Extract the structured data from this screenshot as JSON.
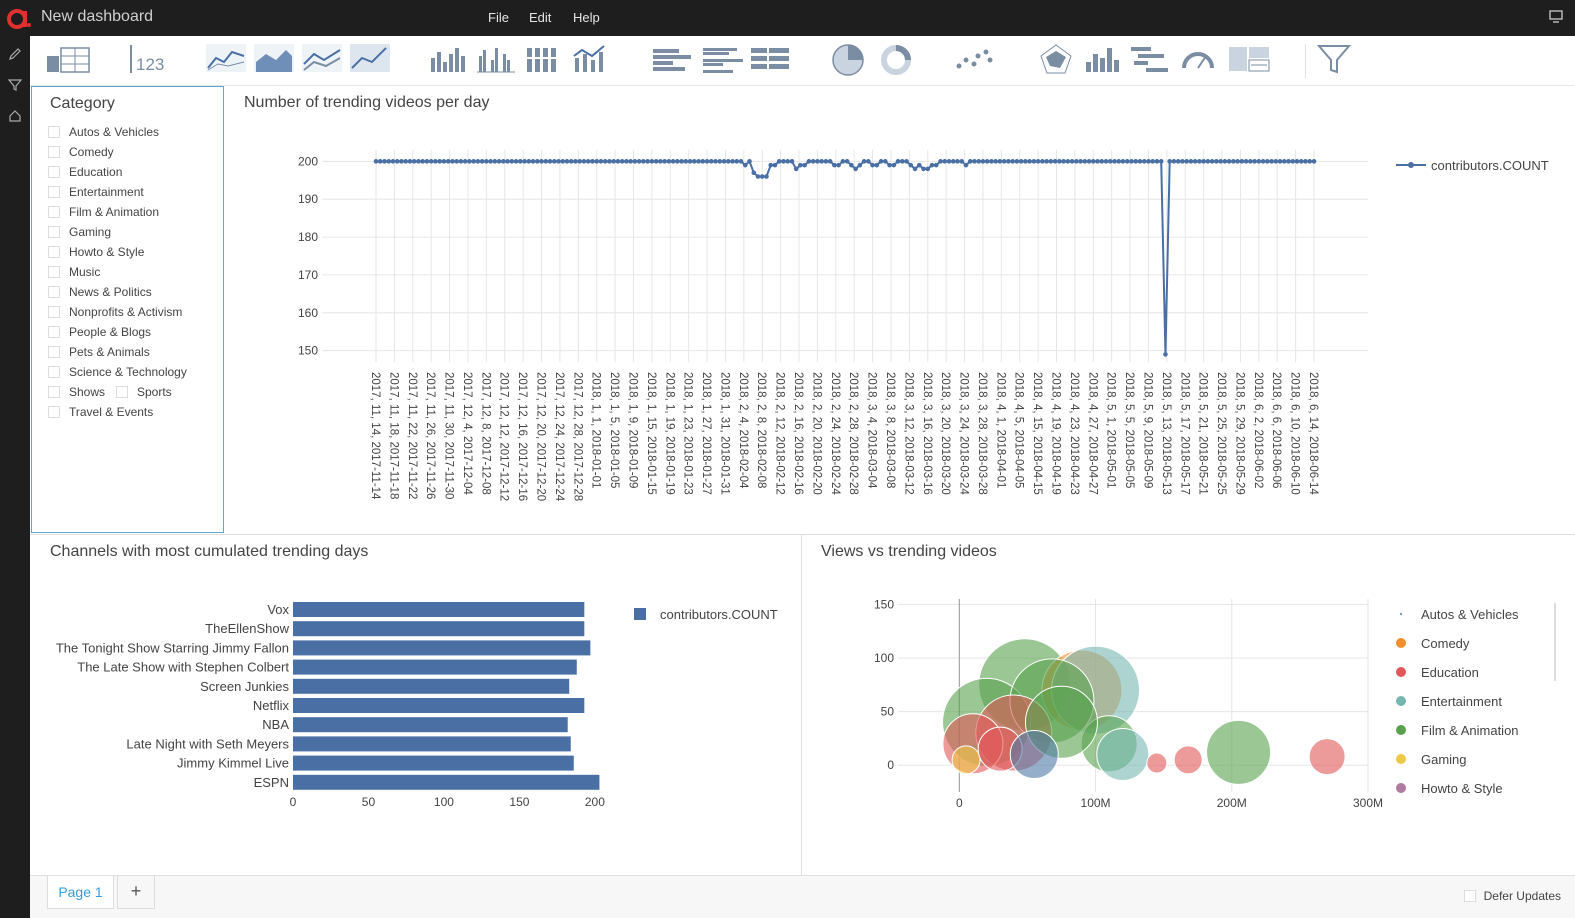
{
  "app": {
    "title": "New dashboard"
  },
  "menu": {
    "file": "File",
    "edit": "Edit",
    "help": "Help"
  },
  "toolbar": {
    "table_number": "123"
  },
  "filter": {
    "title": "Category",
    "items": [
      "Autos & Vehicles",
      "Comedy",
      "Education",
      "Entertainment",
      "Film & Animation",
      "Gaming",
      "Howto & Style",
      "Music",
      "News & Politics",
      "Nonprofits & Activism",
      "People & Blogs",
      "Pets & Animals",
      "Science & Technology",
      "Shows",
      "Sports",
      "Travel & Events"
    ]
  },
  "line_panel": {
    "title": "Number of trending videos per day"
  },
  "bar_panel": {
    "title": "Channels with most cumulated trending days"
  },
  "bubble_panel": {
    "title": "Views vs trending videos"
  },
  "footer": {
    "page_tab": "Page 1",
    "add_tab": "+",
    "defer": "Defer Updates"
  },
  "colors": {
    "accent": "#3a9ad9",
    "series": "#4a6fa5",
    "topbar": "#1e1e1e",
    "brand": "#e03030"
  },
  "chart_data": [
    {
      "type": "line",
      "legend": [
        "contributors.COUNT"
      ],
      "legend_position": "right",
      "ylim": [
        147,
        203
      ],
      "yticks": [
        150,
        160,
        170,
        180,
        190,
        200
      ],
      "xticks": [
        "2017, 11, 14, 2017-11-14",
        "2017, 11, 18, 2017-11-18",
        "2017, 11, 22, 2017-11-22",
        "2017, 11, 26, 2017-11-26",
        "2017, 11, 30, 2017-11-30",
        "2017, 12, 4, 2017-12-04",
        "2017, 12, 8, 2017-12-08",
        "2017, 12, 12, 2017-12-12",
        "2017, 12, 16, 2017-12-16",
        "2017, 12, 20, 2017-12-20",
        "2017, 12, 24, 2017-12-24",
        "2017, 12, 28, 2017-12-28",
        "2018, 1, 1, 2018-01-01",
        "2018, 1, 5, 2018-01-05",
        "2018, 1, 9, 2018-01-09",
        "2018, 1, 15, 2018-01-15",
        "2018, 1, 19, 2018-01-19",
        "2018, 1, 23, 2018-01-23",
        "2018, 1, 27, 2018-01-27",
        "2018, 1, 31, 2018-01-31",
        "2018, 2, 4, 2018-02-04",
        "2018, 2, 8, 2018-02-08",
        "2018, 2, 12, 2018-02-12",
        "2018, 2, 16, 2018-02-16",
        "2018, 2, 20, 2018-02-20",
        "2018, 2, 24, 2018-02-24",
        "2018, 2, 28, 2018-02-28",
        "2018, 3, 4, 2018-03-04",
        "2018, 3, 8, 2018-03-08",
        "2018, 3, 12, 2018-03-12",
        "2018, 3, 16, 2018-03-16",
        "2018, 3, 20, 2018-03-20",
        "2018, 3, 24, 2018-03-24",
        "2018, 3, 28, 2018-03-28",
        "2018, 4, 1, 2018-04-01",
        "2018, 4, 5, 2018-04-05",
        "2018, 4, 15, 2018-04-15",
        "2018, 4, 19, 2018-04-19",
        "2018, 4, 23, 2018-04-23",
        "2018, 4, 27, 2018-04-27",
        "2018, 5, 1, 2018-05-01",
        "2018, 5, 5, 2018-05-05",
        "2018, 5, 9, 2018-05-09",
        "2018, 5, 13, 2018-05-13",
        "2018, 5, 17, 2018-05-17",
        "2018, 5, 21, 2018-05-21",
        "2018, 5, 25, 2018-05-25",
        "2018, 5, 29, 2018-05-29",
        "2018, 6, 2, 2018-06-02",
        "2018, 6, 6, 2018-06-06",
        "2018, 6, 10, 2018-06-10",
        "2018, 6, 14, 2018-06-14"
      ],
      "series": [
        {
          "name": "contributors.COUNT",
          "values": [
            200,
            200,
            200,
            200,
            200,
            200,
            200,
            200,
            200,
            200,
            200,
            200,
            200,
            200,
            200,
            200,
            200,
            200,
            200,
            200,
            200,
            200,
            200,
            200,
            200,
            200,
            200,
            200,
            200,
            200,
            200,
            200,
            200,
            200,
            200,
            200,
            200,
            200,
            200,
            200,
            200,
            200,
            200,
            200,
            200,
            200,
            200,
            200,
            200,
            200,
            200,
            200,
            200,
            200,
            200,
            200,
            200,
            200,
            200,
            200,
            200,
            200,
            200,
            200,
            200,
            200,
            200,
            200,
            200,
            200,
            200,
            200,
            200,
            200,
            200,
            200,
            200,
            200,
            200,
            200,
            200,
            200,
            200,
            200,
            200,
            200,
            200,
            199,
            200,
            197,
            196,
            196,
            196,
            199,
            199,
            200,
            200,
            200,
            200,
            198,
            199,
            199,
            200,
            200,
            200,
            200,
            200,
            200,
            199,
            199,
            200,
            200,
            199,
            198,
            199,
            200,
            200,
            199,
            199,
            200,
            200,
            199,
            199,
            200,
            200,
            200,
            199,
            198,
            199,
            198,
            198,
            199,
            199,
            200,
            200,
            200,
            200,
            200,
            200,
            199,
            200,
            200,
            200,
            200,
            200,
            200,
            200,
            200,
            200,
            200,
            200,
            200,
            200,
            200,
            200,
            200,
            200,
            200,
            200,
            200,
            200,
            200,
            200,
            200,
            200,
            200,
            200,
            200,
            200,
            200,
            200,
            200,
            200,
            200,
            200,
            200,
            200,
            200,
            200,
            200,
            200,
            200,
            200,
            200,
            200,
            200,
            149,
            200,
            200,
            200,
            200,
            200,
            200,
            200,
            200,
            200,
            200,
            200,
            200,
            200,
            200,
            200,
            200,
            200,
            200,
            200,
            200,
            200,
            200,
            200,
            200,
            200,
            200,
            200,
            200,
            200,
            200,
            200,
            200,
            200,
            200,
            200
          ]
        }
      ]
    },
    {
      "type": "bar",
      "orientation": "horizontal",
      "categories": [
        "Vox",
        "TheEllenShow",
        "The Tonight Show Starring Jimmy Fallon",
        "The Late Show with Stephen Colbert",
        "Screen Junkies",
        "Netflix",
        "NBA",
        "Late Night with Seth Meyers",
        "Jimmy Kimmel Live",
        "ESPN"
      ],
      "series": [
        {
          "name": "contributors.COUNT",
          "values": [
            193,
            193,
            197,
            188,
            183,
            193,
            182,
            184,
            186,
            203
          ]
        }
      ],
      "xticks": [
        0,
        50,
        100,
        150,
        200
      ],
      "xlim": [
        0,
        212
      ],
      "legend_position": "right"
    },
    {
      "type": "scatter",
      "subtype": "bubble",
      "xticks": [
        "0",
        "100M",
        "200M",
        "300M"
      ],
      "yticks": [
        0,
        50,
        100,
        150
      ],
      "xlim": [
        -45,
        300
      ],
      "ylim": [
        -25,
        155
      ],
      "legend_position": "right",
      "legend": [
        {
          "name": "Autos & Vehicles",
          "color": "#4e79a7"
        },
        {
          "name": "Comedy",
          "color": "#f28e2b"
        },
        {
          "name": "Education",
          "color": "#e15759"
        },
        {
          "name": "Entertainment",
          "color": "#76b7b2"
        },
        {
          "name": "Film & Animation",
          "color": "#59a14f"
        },
        {
          "name": "Gaming",
          "color": "#edc948"
        },
        {
          "name": "Howto & Style",
          "color": "#b07aa1"
        }
      ],
      "points": [
        {
          "x": 48,
          "y": 75,
          "category": "Film & Animation"
        },
        {
          "x": 20,
          "y": 40,
          "category": "Film & Animation"
        },
        {
          "x": 90,
          "y": 70,
          "category": "Comedy"
        },
        {
          "x": 100,
          "y": 70,
          "category": "Entertainment"
        },
        {
          "x": 68,
          "y": 60,
          "category": "Film & Animation"
        },
        {
          "x": 40,
          "y": 30,
          "category": "Education"
        },
        {
          "x": 10,
          "y": 20,
          "category": "Education"
        },
        {
          "x": 110,
          "y": 20,
          "category": "Film & Animation"
        },
        {
          "x": 120,
          "y": 10,
          "category": "Entertainment"
        },
        {
          "x": 205,
          "y": 12,
          "category": "Film & Animation"
        },
        {
          "x": 270,
          "y": 8,
          "category": "Education"
        },
        {
          "x": 168,
          "y": 5,
          "category": "Education"
        },
        {
          "x": 145,
          "y": 2,
          "category": "Education"
        },
        {
          "x": 5,
          "y": 5,
          "category": "Gaming"
        },
        {
          "x": 75,
          "y": 40,
          "category": "Film & Animation"
        },
        {
          "x": 30,
          "y": 15,
          "category": "Education"
        },
        {
          "x": 55,
          "y": 10,
          "category": "Autos & Vehicles"
        }
      ]
    }
  ]
}
